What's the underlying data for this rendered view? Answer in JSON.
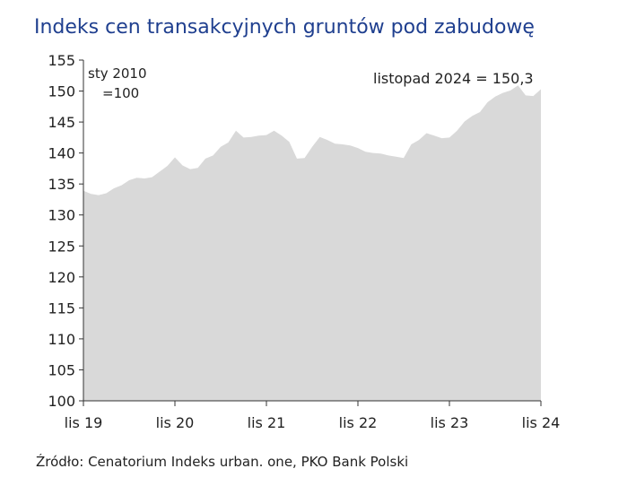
{
  "title": "Indeks cen transakcyjnych gruntów pod zabudowę",
  "source": "Źródło: Cenatorium Indeks urban. one, PKO Bank Polski",
  "colors": {
    "title": "#1f3f8f",
    "area": "#d9d9d9",
    "axis": "#333333"
  },
  "chart_data": {
    "type": "area",
    "annotation_base_line1": "sty 2010",
    "annotation_base_line2": "=100",
    "annotation_last": "listopad 2024 = 150,3",
    "ylim": [
      100,
      155
    ],
    "yticks": [
      "155",
      "150",
      "145",
      "140",
      "135",
      "130",
      "125",
      "120",
      "115",
      "110",
      "105",
      "100"
    ],
    "xticks": [
      "lis 19",
      "lis 20",
      "lis 21",
      "lis 22",
      "lis 23",
      "lis 24"
    ],
    "x": [
      "2019-11",
      "2019-12",
      "2020-01",
      "2020-02",
      "2020-03",
      "2020-04",
      "2020-05",
      "2020-06",
      "2020-07",
      "2020-08",
      "2020-09",
      "2020-10",
      "2020-11",
      "2020-12",
      "2021-01",
      "2021-02",
      "2021-03",
      "2021-04",
      "2021-05",
      "2021-06",
      "2021-07",
      "2021-08",
      "2021-09",
      "2021-10",
      "2021-11",
      "2021-12",
      "2022-01",
      "2022-02",
      "2022-03",
      "2022-04",
      "2022-05",
      "2022-06",
      "2022-07",
      "2022-08",
      "2022-09",
      "2022-10",
      "2022-11",
      "2022-12",
      "2023-01",
      "2023-02",
      "2023-03",
      "2023-04",
      "2023-05",
      "2023-06",
      "2023-07",
      "2023-08",
      "2023-09",
      "2023-10",
      "2023-11",
      "2023-12",
      "2024-01",
      "2024-02",
      "2024-03",
      "2024-04",
      "2024-05",
      "2024-06",
      "2024-07",
      "2024-08",
      "2024-09",
      "2024-10",
      "2024-11"
    ],
    "values": [
      133.9,
      133.4,
      133.2,
      133.5,
      134.3,
      134.8,
      135.6,
      136.0,
      135.9,
      136.1,
      137.0,
      137.9,
      139.3,
      138.0,
      137.4,
      137.6,
      139.1,
      139.6,
      141.0,
      141.7,
      143.6,
      142.5,
      142.6,
      142.8,
      142.9,
      143.6,
      142.8,
      141.8,
      139.1,
      139.2,
      141.0,
      142.6,
      142.1,
      141.5,
      141.4,
      141.2,
      140.8,
      140.2,
      140.0,
      139.9,
      139.6,
      139.4,
      139.2,
      141.4,
      142.1,
      143.2,
      142.8,
      142.4,
      142.5,
      143.6,
      145.1,
      146.0,
      146.6,
      148.2,
      149.1,
      149.7,
      150.1,
      150.9,
      149.3,
      149.2,
      150.3
    ]
  }
}
